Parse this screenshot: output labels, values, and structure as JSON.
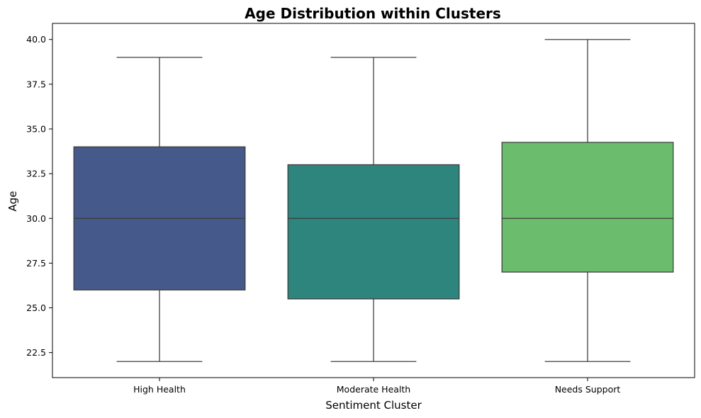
{
  "chart_data": {
    "type": "box",
    "title": "Age Distribution within Clusters",
    "xlabel": "Sentiment Cluster",
    "ylabel": "Age",
    "ylim": [
      21.1,
      40.9
    ],
    "yticks": [
      22.5,
      25.0,
      27.5,
      30.0,
      32.5,
      35.0,
      37.5,
      40.0
    ],
    "ytick_labels": [
      "22.5",
      "25.0",
      "27.5",
      "30.0",
      "32.5",
      "35.0",
      "37.5",
      "40.0"
    ],
    "grid": false,
    "categories": [
      "High Health",
      "Moderate Health",
      "Needs Support"
    ],
    "boxes": [
      {
        "category": "High Health",
        "whisker_low": 22,
        "q1": 26,
        "median": 30,
        "q3": 34,
        "whisker_high": 39,
        "color": "#45598a"
      },
      {
        "category": "Moderate Health",
        "whisker_low": 22,
        "q1": 25.5,
        "median": 30,
        "q3": 33,
        "whisker_high": 39,
        "color": "#2e857d"
      },
      {
        "category": "Needs Support",
        "whisker_low": 22,
        "q1": 27,
        "median": 30,
        "q3": 34.25,
        "whisker_high": 40,
        "color": "#6bbc6d"
      }
    ]
  }
}
